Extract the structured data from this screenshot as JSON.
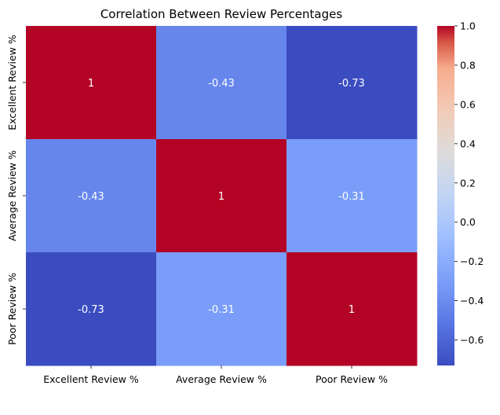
{
  "chart_data": {
    "type": "heatmap",
    "title": "Correlation Between Review Percentages",
    "x_categories": [
      "Excellent Review %",
      "Average Review %",
      "Poor Review %"
    ],
    "y_categories": [
      "Excellent Review %",
      "Average Review %",
      "Poor Review %"
    ],
    "values": [
      [
        1,
        -0.43,
        -0.73
      ],
      [
        -0.43,
        1,
        -0.31
      ],
      [
        -0.73,
        -0.31,
        1
      ]
    ],
    "annotations": [
      [
        "1",
        "-0.43",
        "-0.73"
      ],
      [
        "-0.43",
        "1",
        "-0.31"
      ],
      [
        "-0.73",
        "-0.31",
        "1"
      ]
    ],
    "colormap": "coolwarm",
    "colorbar": {
      "range": [
        -0.73,
        1.0
      ],
      "ticks": [
        1.0,
        0.8,
        0.6,
        0.4,
        0.2,
        0.0,
        -0.2,
        -0.4,
        -0.6
      ],
      "tick_labels": [
        "1.0",
        "0.8",
        "0.6",
        "0.4",
        "0.2",
        "0.0",
        "−0.2",
        "−0.4",
        "−0.6"
      ]
    }
  }
}
